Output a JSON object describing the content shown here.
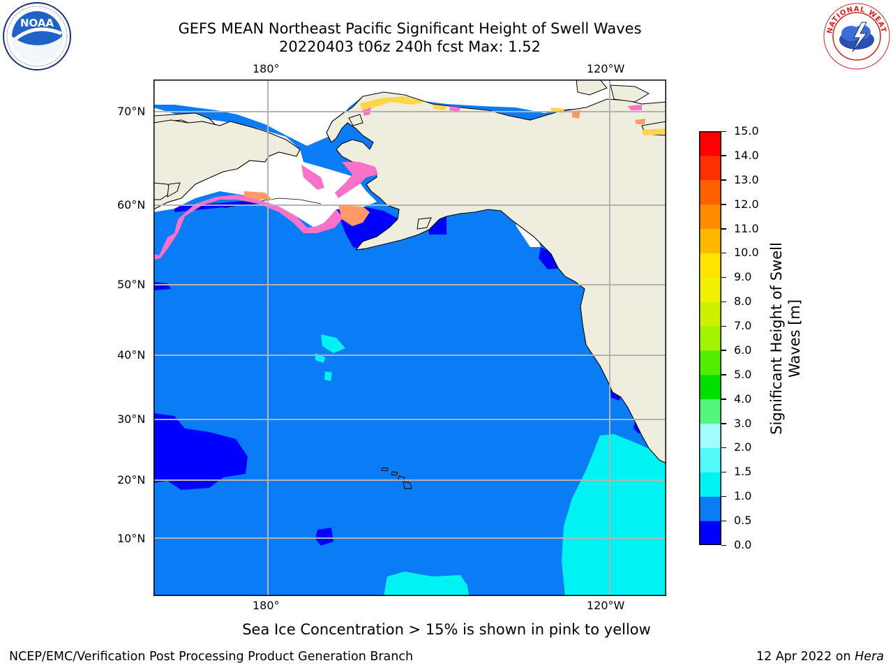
{
  "header": {
    "title_line1": "GEFS MEAN Northeast Pacific Significant Height of Swell Waves",
    "title_line2": "20220403 t06z 240h fcst   Max: 1.52"
  },
  "logos": {
    "noara_text": "NOAA",
    "noaa_ring": "NATIONAL OCEANIC AND ATMOSPHERIC ADMINISTRATION · U.S. DEPARTMENT OF COMMERCE",
    "nws_ring": "NATIONAL WEATHER SERVICE"
  },
  "map": {
    "lon_top": [
      "180°",
      "120°W"
    ],
    "lon_bottom": [
      "180°",
      "120°W"
    ],
    "lat_labels": [
      "70°N",
      "60°N",
      "50°N",
      "40°N",
      "30°N",
      "20°N",
      "10°N"
    ],
    "colors": {
      "land": "#efedde",
      "ocean_main": "#0a7cf5",
      "ocean_low": "#0a10f0",
      "ocean_high": "#0af5f5",
      "ice_pink": "#f772c8",
      "ice_orange": "#ff9a66",
      "ice_yellow": "#ffd54a",
      "grid": "#b3b3b3"
    }
  },
  "colorbar": {
    "label_line1": "Significant Height of Swell",
    "label_line2": "Waves [m]",
    "ticks": [
      "0.0",
      "0.5",
      "1.0",
      "1.5",
      "2.0",
      "3.0",
      "4.0",
      "5.0",
      "6.0",
      "7.0",
      "8.0",
      "9.0",
      "10.0",
      "11.0",
      "12.0",
      "13.0",
      "14.0",
      "15.0"
    ],
    "colors": [
      "#0000ff",
      "#0a7cf5",
      "#00f2f2",
      "#52fafa",
      "#a3fcfc",
      "#52f77c",
      "#00e000",
      "#52ee00",
      "#a3f200",
      "#ccf200",
      "#f2f200",
      "#ffe500",
      "#ffb800",
      "#ff8c00",
      "#ff6000",
      "#ff3000",
      "#ff0000"
    ]
  },
  "caption": "Sea Ice Concentration > 15% is shown in pink to yellow",
  "footer": {
    "left": "NCEP/EMC/Verification Post Processing Product Generation Branch",
    "right_date": "12 Apr 2022 on ",
    "right_machine": "Hera"
  }
}
